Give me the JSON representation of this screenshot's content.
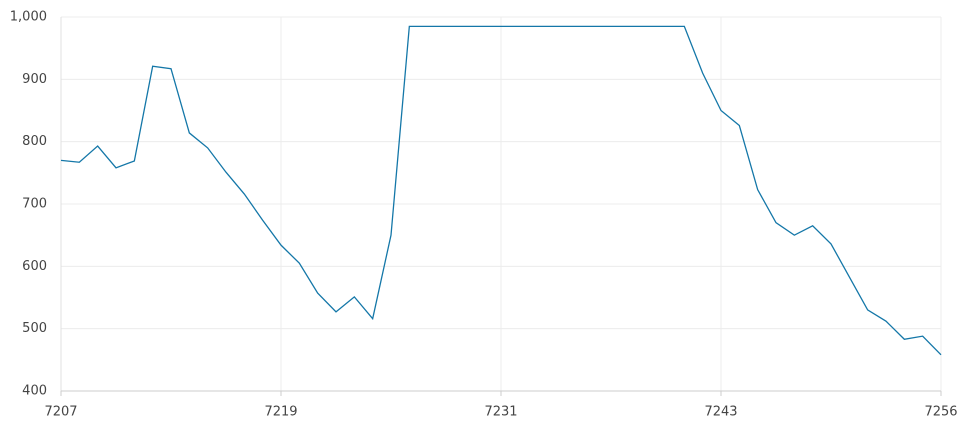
{
  "chart_data": {
    "type": "line",
    "categories": [
      "7207",
      null,
      null,
      null,
      null,
      null,
      null,
      null,
      null,
      null,
      null,
      null,
      "7219",
      null,
      null,
      null,
      null,
      null,
      null,
      null,
      null,
      null,
      null,
      null,
      "7231",
      null,
      null,
      null,
      null,
      null,
      null,
      null,
      null,
      null,
      null,
      null,
      "7243",
      null,
      null,
      null,
      null,
      null,
      null,
      null,
      null,
      null,
      null,
      null,
      "7256"
    ],
    "values": [
      770,
      767,
      793,
      758,
      769,
      921,
      917,
      814,
      790,
      751,
      716,
      674,
      634,
      605,
      557,
      527,
      551,
      516,
      650,
      985,
      985,
      985,
      985,
      985,
      985,
      985,
      985,
      985,
      985,
      985,
      985,
      985,
      985,
      985,
      985,
      910,
      850,
      826,
      723,
      670,
      650,
      665,
      636,
      583,
      530,
      512,
      483,
      488,
      458
    ],
    "color": "#1477a8",
    "ylim": [
      400,
      1000
    ],
    "yticks": [
      400,
      500,
      600,
      700,
      800,
      900,
      {
        "value": 1000,
        "label": "1,000"
      }
    ],
    "grid": true
  }
}
